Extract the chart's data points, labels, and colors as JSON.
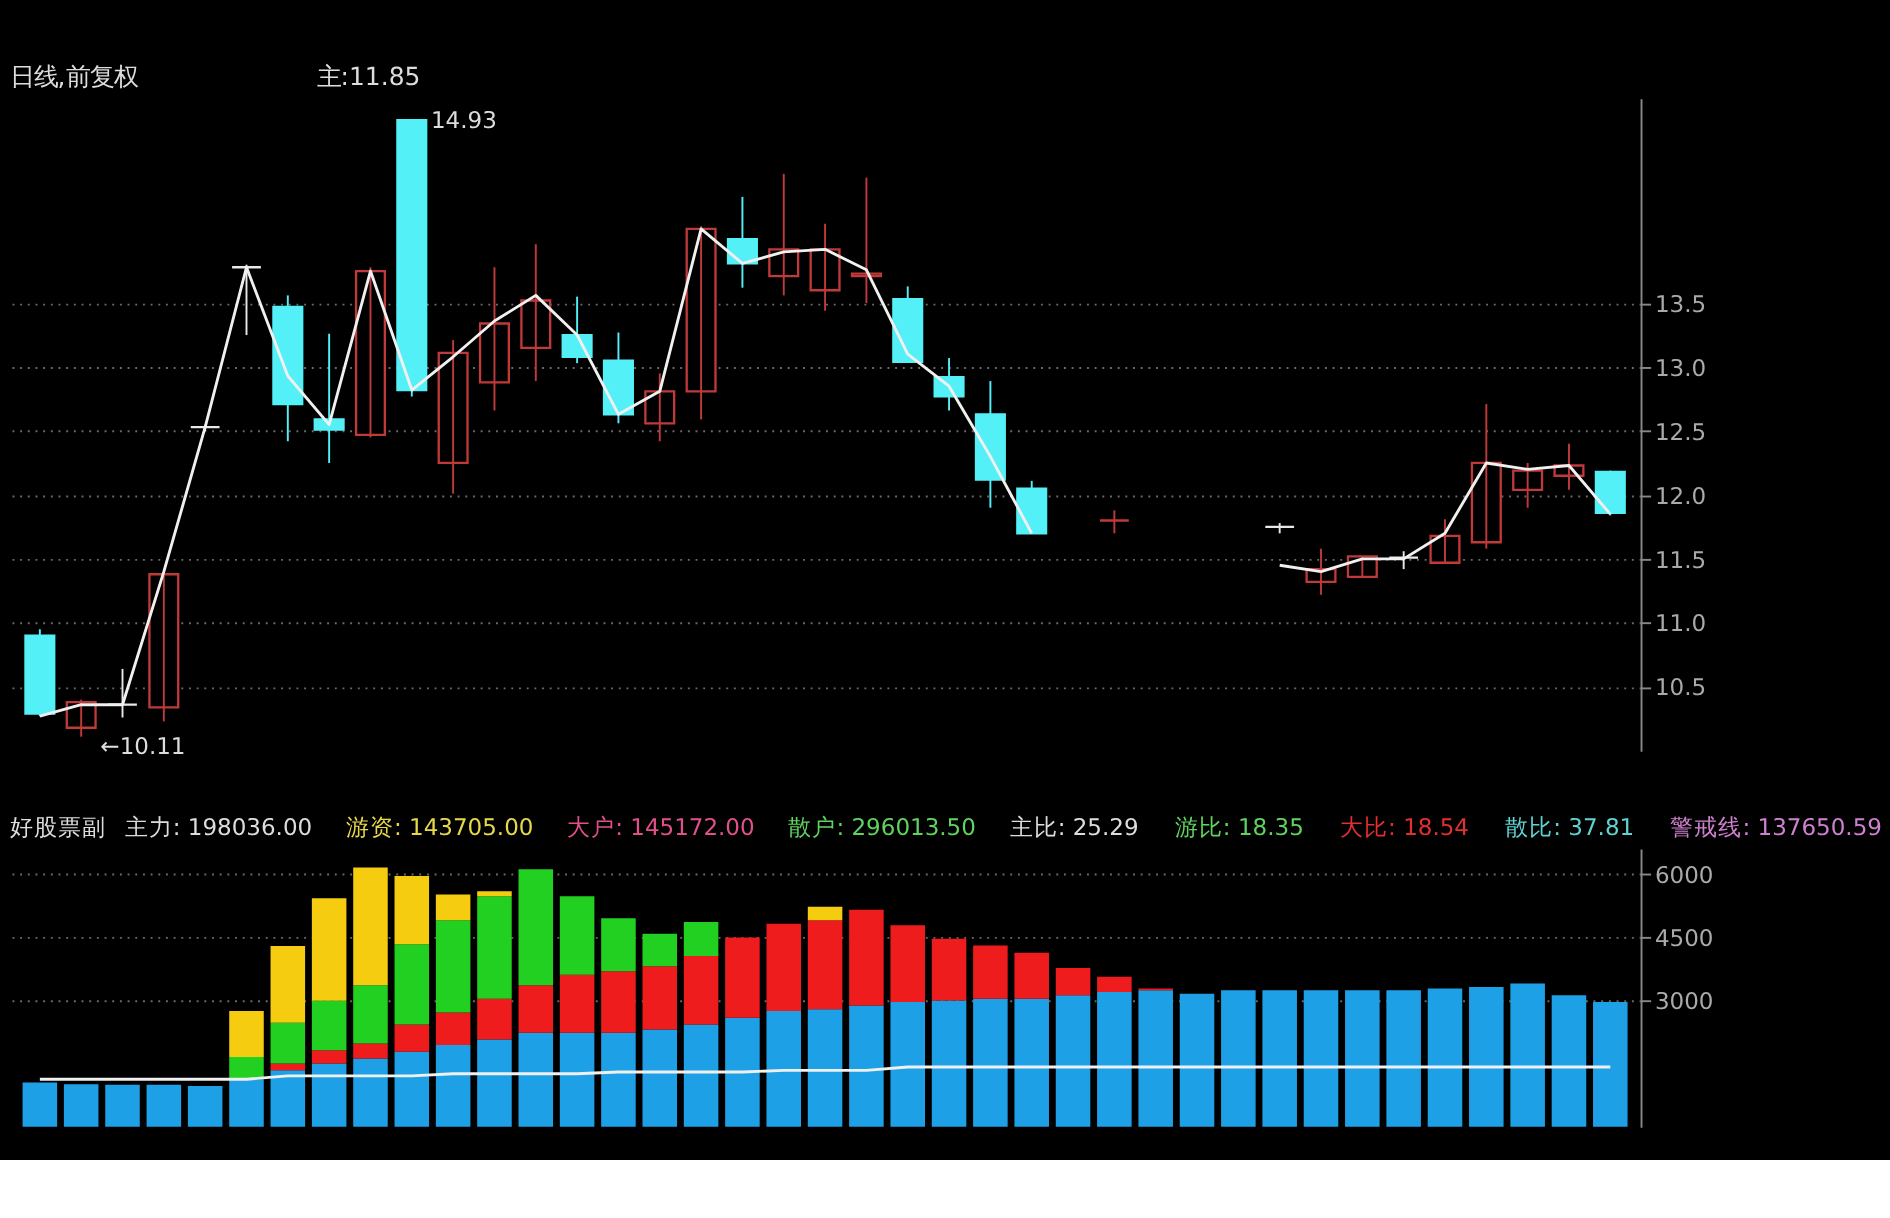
{
  "chart_data": [
    {
      "type": "candlestick",
      "title": "日线,前复权",
      "categories": [
        null,
        null,
        null,
        null,
        null,
        null,
        null,
        null,
        null,
        null,
        null,
        null,
        null,
        null,
        null,
        null,
        null,
        null,
        null,
        null,
        null,
        null,
        null,
        null,
        null,
        null,
        null,
        null,
        null,
        null,
        null,
        null,
        null,
        null,
        null,
        null,
        null,
        null,
        null
      ],
      "ohlc": [
        [
          10.9,
          10.95,
          10.27,
          10.29
        ],
        [
          10.18,
          10.4,
          10.11,
          10.38
        ],
        [
          10.36,
          10.64,
          10.26,
          10.36
        ],
        [
          10.34,
          11.38,
          10.23,
          11.38
        ],
        [
          12.53,
          12.55,
          12.5,
          12.53
        ],
        [
          13.78,
          13.8,
          13.25,
          13.78
        ],
        [
          13.47,
          13.56,
          12.42,
          12.71
        ],
        [
          12.59,
          13.26,
          12.25,
          12.51
        ],
        [
          12.47,
          13.78,
          12.45,
          13.75
        ],
        [
          14.93,
          14.93,
          12.77,
          12.82
        ],
        [
          12.25,
          13.21,
          12.01,
          13.11
        ],
        [
          12.88,
          13.78,
          12.66,
          13.34
        ],
        [
          13.15,
          13.96,
          12.89,
          13.52
        ],
        [
          13.25,
          13.55,
          13.03,
          13.08
        ],
        [
          13.05,
          13.27,
          12.56,
          12.63
        ],
        [
          12.56,
          12.95,
          12.42,
          12.81
        ],
        [
          12.81,
          14.1,
          12.59,
          14.08
        ],
        [
          14.0,
          14.33,
          13.62,
          13.81
        ],
        [
          13.71,
          14.51,
          13.56,
          13.92
        ],
        [
          13.6,
          14.12,
          13.44,
          13.92
        ],
        [
          13.71,
          14.48,
          13.5,
          13.73
        ],
        [
          13.53,
          13.63,
          13.04,
          13.04
        ],
        [
          12.92,
          13.07,
          12.66,
          12.77
        ],
        [
          12.63,
          12.89,
          11.9,
          12.12
        ],
        [
          12.05,
          12.11,
          11.7,
          11.7
        ],
        null,
        [
          11.8,
          11.88,
          11.7,
          11.8
        ],
        null,
        null,
        null,
        [
          11.75,
          11.78,
          11.7,
          11.75
        ],
        [
          11.32,
          11.58,
          11.22,
          11.42
        ],
        [
          11.36,
          11.52,
          11.36,
          11.52
        ],
        [
          11.51,
          11.56,
          11.42,
          11.51
        ],
        [
          11.47,
          11.81,
          11.47,
          11.68
        ],
        [
          11.63,
          12.71,
          11.58,
          12.25
        ],
        [
          12.04,
          12.25,
          11.9,
          12.19
        ],
        [
          12.15,
          12.4,
          12.04,
          12.23
        ],
        [
          12.18,
          12.19,
          11.84,
          11.86
        ]
      ],
      "colors": [
        "#54f0f8",
        "#c03a3a",
        "#e8e8e8",
        "#c03a3a",
        "#e8e8e8",
        "#e8e8e8",
        "#54f0f8",
        "#54f0f8",
        "#c03a3a",
        "#54f0f8",
        "#c03a3a",
        "#c03a3a",
        "#c03a3a",
        "#54f0f8",
        "#54f0f8",
        "#c03a3a",
        "#c03a3a",
        "#54f0f8",
        "#c03a3a",
        "#c03a3a",
        "#c03a3a",
        "#54f0f8",
        "#54f0f8",
        "#54f0f8",
        "#54f0f8",
        null,
        "#c03a3a",
        null,
        null,
        null,
        "#e8e8e8",
        "#c03a3a",
        "#c03a3a",
        "#e8e8e8",
        "#c03a3a",
        "#c03a3a",
        "#c03a3a",
        "#c03a3a",
        "#54f0f8"
      ],
      "series": [
        {
          "type": "line",
          "color": "#f0f0f0",
          "values": [
            10.27,
            10.36,
            10.36,
            11.4,
            12.53,
            13.78,
            12.93,
            12.55,
            13.75,
            12.82,
            13.08,
            13.36,
            13.56,
            13.25,
            12.63,
            12.81,
            14.08,
            13.81,
            13.9,
            13.92,
            13.76,
            13.1,
            12.85,
            12.3,
            11.7,
            null,
            null,
            null,
            null,
            null,
            11.45,
            11.4,
            11.5,
            11.5,
            11.7,
            12.25,
            12.2,
            12.23,
            11.85
          ]
        }
      ],
      "ylim": [
        10.0,
        15.1
      ],
      "yticks": [
        {
          "value": 10.5,
          "label": "10.5"
        },
        {
          "value": 11,
          "label": "11.0"
        },
        {
          "value": 11.5,
          "label": "11.5"
        },
        {
          "value": 12,
          "label": "12.0"
        },
        {
          "value": 12.5,
          "label": "12.5"
        },
        {
          "value": 13,
          "label": "13.0"
        },
        {
          "value": 13.5,
          "label": "13.5"
        }
      ],
      "grid": "y",
      "tick_labels": "y",
      "annotations": [
        "主:11.85",
        "14.93",
        "←10.11"
      ]
    },
    {
      "type": "bar",
      "stacked": true,
      "categories": [
        null,
        null,
        null,
        null,
        null,
        null,
        null,
        null,
        null,
        null,
        null,
        null,
        null,
        null,
        null,
        null,
        null,
        null,
        null,
        null,
        null,
        null,
        null,
        null,
        null,
        null,
        null,
        null,
        null,
        null,
        null,
        null,
        null,
        null,
        null,
        null,
        null,
        null,
        null
      ],
      "series": [
        {
          "color": "#1ea0e6",
          "values": [
            1050,
            1010,
            1000,
            1000,
            970,
            1130,
            1340,
            1500,
            1620,
            1780,
            1940,
            2070,
            2230,
            2230,
            2230,
            2310,
            2430,
            2590,
            2750,
            2790,
            2880,
            2960,
            3000,
            3040,
            3040,
            3120,
            3200,
            3240,
            3160,
            3240,
            3240,
            3240,
            3240,
            3240,
            3280,
            3320,
            3400,
            3120,
            2960
          ]
        },
        {
          "color": "#ee1c1c",
          "values": [
            null,
            null,
            null,
            null,
            null,
            null,
            160,
            320,
            360,
            650,
            770,
            970,
            1130,
            1380,
            1460,
            1500,
            1620,
            1900,
            2070,
            2110,
            2270,
            1820,
            1460,
            1260,
            1090,
            650,
            360,
            40,
            null,
            null,
            null,
            null,
            null,
            null,
            null,
            null,
            null,
            null,
            null
          ]
        },
        {
          "color": "#22d022",
          "values": [
            null,
            null,
            null,
            null,
            null,
            530,
            970,
            1170,
            1380,
            1900,
            2190,
            2430,
            2750,
            1860,
            1260,
            770,
            810,
            null,
            null,
            null,
            null,
            null,
            null,
            null,
            null,
            null,
            null,
            null,
            null,
            null,
            null,
            null,
            null,
            null,
            null,
            null,
            null,
            null,
            null
          ]
        },
        {
          "color": "#f5cc10",
          "values": [
            null,
            null,
            null,
            null,
            null,
            1090,
            1820,
            2430,
            2790,
            1620,
            610,
            120,
            null,
            null,
            null,
            null,
            null,
            null,
            null,
            320,
            null,
            null,
            null,
            null,
            null,
            null,
            null,
            null,
            null,
            null,
            null,
            null,
            null,
            null,
            null,
            null,
            null,
            null,
            null
          ]
        },
        {
          "type": "line",
          "color": "#f0f0f0",
          "values": [
            1130,
            1130,
            1130,
            1130,
            1130,
            1130,
            1210,
            1210,
            1210,
            1210,
            1260,
            1260,
            1260,
            1260,
            1300,
            1300,
            1300,
            1300,
            1340,
            1340,
            1340,
            1420,
            1420,
            1420,
            1420,
            1420,
            1420,
            1420,
            1420,
            1420,
            1420,
            1420,
            1420,
            1420,
            1420,
            1420,
            1420,
            1420,
            1420
          ]
        }
      ],
      "ylim": [
        0,
        6600
      ],
      "yticks": [
        3000,
        4500,
        6000
      ],
      "grid": "y",
      "tick_labels": "y",
      "annotations": [
        "好股票副",
        "主力: 198036.00",
        "游资: 143705.00",
        "大户: 145172.00",
        "散户: 296013.50",
        "主比: 25.29",
        "游比: 18.35",
        "大比: 18.54",
        "散比: 37.81",
        "警戒线: 137650.59"
      ]
    }
  ]
}
